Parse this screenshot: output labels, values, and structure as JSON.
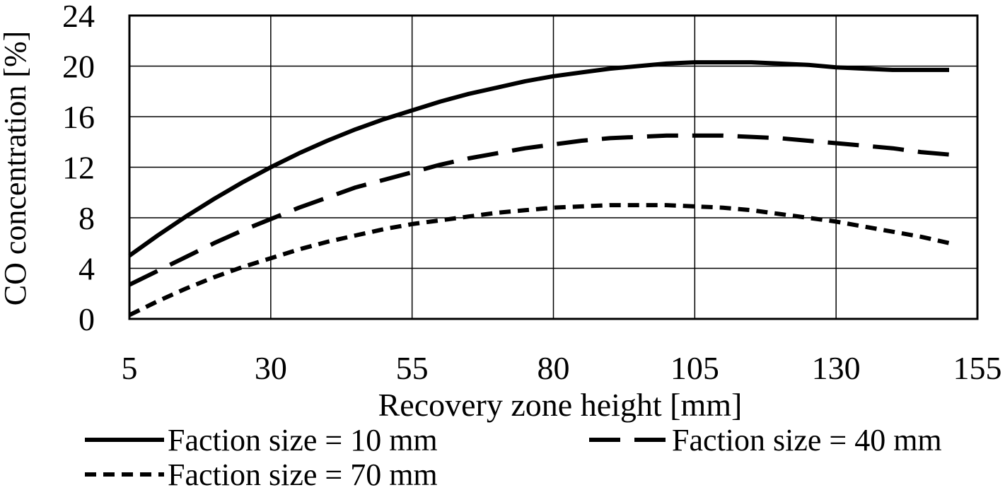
{
  "chart_data": {
    "type": "line",
    "title": "",
    "xlabel": "Recovery zone height [mm]",
    "ylabel": "CO concentration [%]",
    "xlim": [
      5,
      155
    ],
    "ylim": [
      0,
      24
    ],
    "xticks": [
      5,
      30,
      55,
      80,
      105,
      130,
      155
    ],
    "yticks": [
      0,
      4,
      8,
      12,
      16,
      20,
      24
    ],
    "grid": true,
    "legend_position": "bottom",
    "series": [
      {
        "name": "Faction size = 10 mm",
        "style": "solid",
        "x": [
          5,
          10,
          15,
          20,
          25,
          30,
          35,
          40,
          45,
          50,
          55,
          60,
          65,
          70,
          75,
          80,
          85,
          90,
          95,
          100,
          105,
          110,
          115,
          120,
          125,
          130,
          135,
          140,
          145,
          150
        ],
        "y": [
          5.0,
          6.6,
          8.1,
          9.5,
          10.8,
          12.0,
          13.1,
          14.1,
          15.0,
          15.8,
          16.5,
          17.2,
          17.8,
          18.3,
          18.8,
          19.2,
          19.5,
          19.8,
          20.0,
          20.2,
          20.3,
          20.3,
          20.3,
          20.2,
          20.1,
          19.9,
          19.8,
          19.7,
          19.7,
          19.7
        ]
      },
      {
        "name": "Faction size = 40 mm",
        "style": "long-dash",
        "x": [
          5,
          10,
          15,
          20,
          25,
          30,
          35,
          40,
          45,
          50,
          55,
          60,
          65,
          70,
          75,
          80,
          85,
          90,
          95,
          100,
          105,
          110,
          115,
          120,
          125,
          130,
          135,
          140,
          145,
          150
        ],
        "y": [
          2.7,
          3.8,
          4.9,
          6.0,
          7.0,
          7.9,
          8.8,
          9.6,
          10.4,
          11.0,
          11.6,
          12.2,
          12.7,
          13.1,
          13.5,
          13.8,
          14.1,
          14.3,
          14.4,
          14.5,
          14.5,
          14.5,
          14.4,
          14.3,
          14.1,
          13.9,
          13.7,
          13.5,
          13.2,
          13.0
        ]
      },
      {
        "name": "Faction size = 70 mm",
        "style": "short-dash",
        "x": [
          5,
          10,
          15,
          20,
          25,
          30,
          35,
          40,
          45,
          50,
          55,
          60,
          65,
          70,
          75,
          80,
          85,
          90,
          95,
          100,
          105,
          110,
          115,
          120,
          125,
          130,
          135,
          140,
          145,
          150
        ],
        "y": [
          0.3,
          1.4,
          2.4,
          3.3,
          4.1,
          4.8,
          5.5,
          6.1,
          6.6,
          7.1,
          7.5,
          7.8,
          8.1,
          8.4,
          8.6,
          8.8,
          8.9,
          9.0,
          9.0,
          9.0,
          8.9,
          8.8,
          8.6,
          8.3,
          8.0,
          7.7,
          7.3,
          6.9,
          6.5,
          6.0
        ]
      }
    ]
  }
}
